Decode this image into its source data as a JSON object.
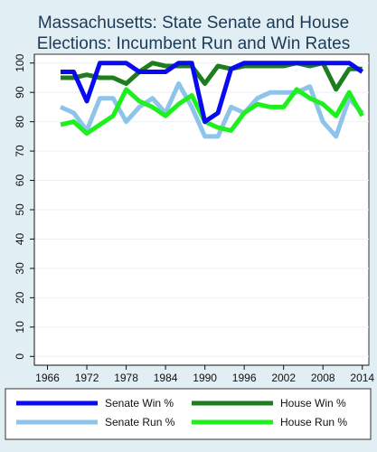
{
  "chart_data": {
    "type": "line",
    "title_lines": [
      "Massachusetts: State Senate and House",
      "Elections: Incumbent Run and Win Rates"
    ],
    "xlabel": "",
    "ylabel": "",
    "xlim": [
      1964,
      2015
    ],
    "ylim": [
      -3,
      103
    ],
    "xticks": [
      1966,
      1972,
      1978,
      1984,
      1990,
      1996,
      2002,
      2008,
      2014
    ],
    "yticks": [
      0,
      10,
      20,
      30,
      40,
      50,
      60,
      70,
      80,
      90,
      100
    ],
    "grid": "horizontal",
    "legend_position": "bottom",
    "x": [
      1968,
      1970,
      1972,
      1974,
      1976,
      1978,
      1980,
      1982,
      1984,
      1986,
      1988,
      1990,
      1992,
      1994,
      1996,
      1998,
      2000,
      2002,
      2004,
      2006,
      2008,
      2010,
      2012,
      2014
    ],
    "series": [
      {
        "name": "Senate Win %",
        "color": "#0a0af0",
        "values": [
          97,
          97,
          87,
          100,
          100,
          100,
          97,
          97,
          97,
          100,
          100,
          80,
          83,
          98,
          100,
          100,
          100,
          100,
          100,
          100,
          100,
          100,
          100,
          97
        ]
      },
      {
        "name": "House Win %",
        "color": "#1e7d1e",
        "values": [
          95,
          95,
          96,
          95,
          95,
          93,
          97,
          100,
          99,
          99,
          99,
          93,
          99,
          98,
          99,
          99,
          99,
          99,
          100,
          99,
          100,
          91,
          98,
          98
        ]
      },
      {
        "name": "Senate Run %",
        "color": "#8ec3ea",
        "values": [
          85,
          83,
          77,
          88,
          88,
          80,
          85,
          88,
          83,
          93,
          85,
          75,
          75,
          85,
          83,
          88,
          90,
          90,
          90,
          92,
          80,
          75,
          88,
          83
        ]
      },
      {
        "name": "House Run %",
        "color": "#1ef01e",
        "values": [
          79,
          80,
          76,
          79,
          82,
          91,
          87,
          85,
          82,
          86,
          89,
          80,
          78,
          77,
          83,
          86,
          85,
          85,
          91,
          88,
          86,
          82,
          90,
          82
        ]
      }
    ]
  }
}
